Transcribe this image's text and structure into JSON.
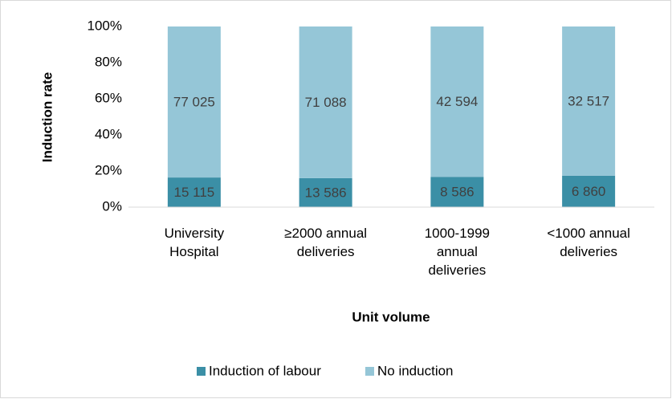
{
  "chart_data": {
    "type": "bar",
    "stacking": "percent",
    "x_label": "Unit volume",
    "y_label": "Induction rate",
    "categories": [
      "University\nHospital",
      "≥2000 annual\ndeliveries",
      "1000-1999\nannual\ndeliveries",
      "<1000 annual\ndeliveries"
    ],
    "series": [
      {
        "name": "Induction of labour",
        "color": "#3b8fa6",
        "values": [
          15115,
          13586,
          8586,
          6860
        ],
        "value_labels": [
          "15 115",
          "13 586",
          "8 586",
          "6 860"
        ]
      },
      {
        "name": "No induction",
        "color": "#95c6d7",
        "values": [
          77025,
          71088,
          42594,
          32517
        ],
        "value_labels": [
          "77 025",
          "71 088",
          "42 594",
          "32 517"
        ]
      }
    ],
    "ylim": [
      0,
      100
    ],
    "yticks": [
      {
        "value": 0,
        "label": "0%"
      },
      {
        "value": 20,
        "label": "20%"
      },
      {
        "value": 40,
        "label": "40%"
      },
      {
        "value": 60,
        "label": "60%"
      },
      {
        "value": 80,
        "label": "80%"
      },
      {
        "value": 100,
        "label": "100%"
      }
    ],
    "grid": false,
    "legend": "bottom"
  }
}
